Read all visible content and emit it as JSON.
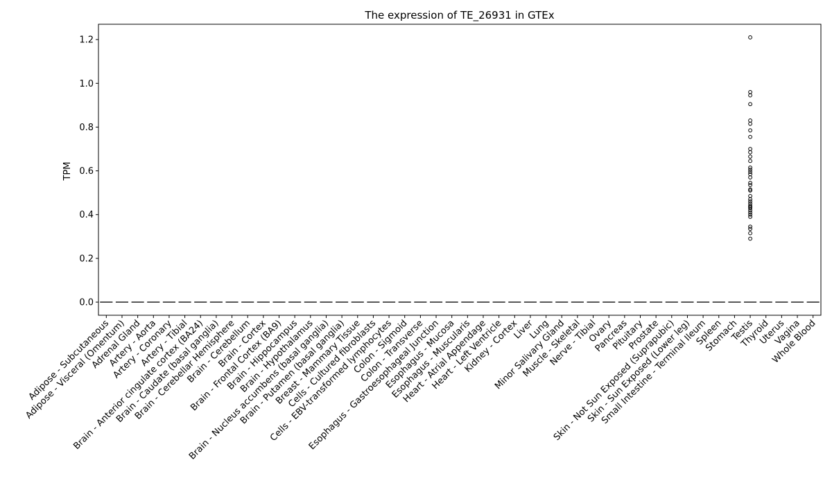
{
  "chart_data": {
    "type": "box",
    "title": "The expression of TE_26931 in GTEx",
    "xlabel": "",
    "ylabel": "TPM",
    "ylim": [
      -0.06,
      1.27
    ],
    "yticks": [
      0.0,
      0.2,
      0.4,
      0.6,
      0.8,
      1.0,
      1.2
    ],
    "ytick_labels": [
      "0.0",
      "0.2",
      "0.4",
      "0.6",
      "0.8",
      "1.0",
      "1.2"
    ],
    "grid": false,
    "legend": "none",
    "categories": [
      "Adipose - Subcutaneous",
      "Adipose - Visceral (Omentum)",
      "Adrenal Gland",
      "Artery - Aorta",
      "Artery - Coronary",
      "Artery - Tibial",
      "Brain - Anterior cingulate cortex (BA24)",
      "Brain - Caudate (basal ganglia)",
      "Brain - Cerebellar Hemisphere",
      "Brain - Cerebellum",
      "Brain - Cortex",
      "Brain - Frontal Cortex (BA9)",
      "Brain - Hippocampus",
      "Brain - Hypothalamus",
      "Brain - Nucleus accumbens (basal ganglia)",
      "Brain - Putamen (basal ganglia)",
      "Breast - Mammary Tissue",
      "Cells - Cultured fibroblasts",
      "Cells - EBV-transformed lymphocytes",
      "Colon - Sigmoid",
      "Colon - Transverse",
      "Esophagus - Gastroesophageal Junction",
      "Esophagus - Mucosa",
      "Esophagus - Muscularis",
      "Heart - Atrial Appendage",
      "Heart - Left Ventricle",
      "Kidney - Cortex",
      "Liver",
      "Lung",
      "Minor Salivary Gland",
      "Muscle - Skeletal",
      "Nerve - Tibial",
      "Ovary",
      "Pancreas",
      "Pituitary",
      "Prostate",
      "Skin - Not Sun Exposed (Suprapubic)",
      "Skin - Sun Exposed (Lower leg)",
      "Small Intestine - Terminal Ileum",
      "Spleen",
      "Stomach",
      "Testis",
      "Thyroid",
      "Uterus",
      "Vagina",
      "Whole Blood"
    ],
    "median": 0.0,
    "outliers": [
      {
        "category": "Testis",
        "values": [
          1.21,
          0.96,
          0.945,
          0.905,
          0.83,
          0.815,
          0.785,
          0.755,
          0.7,
          0.685,
          0.665,
          0.645,
          0.615,
          0.605,
          0.595,
          0.585,
          0.57,
          0.545,
          0.535,
          0.515,
          0.51,
          0.485,
          0.47,
          0.46,
          0.45,
          0.44,
          0.435,
          0.43,
          0.42,
          0.41,
          0.4,
          0.39,
          0.345,
          0.335,
          0.315,
          0.29
        ]
      }
    ],
    "colors": {
      "box": "#1f77b4",
      "median": "#4c4c4c",
      "outlier": "#000000"
    }
  }
}
